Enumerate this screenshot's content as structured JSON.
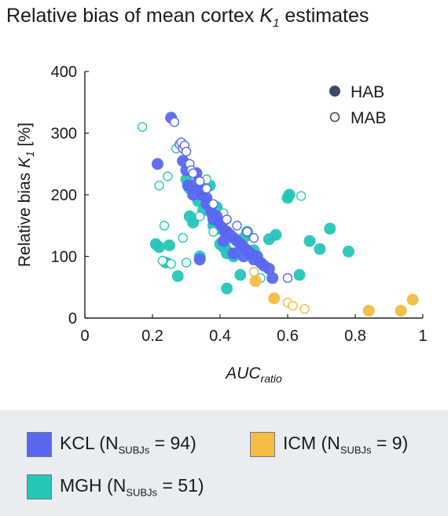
{
  "title": {
    "prefix": "Relative bias of mean cortex ",
    "var": "K",
    "sub": "1",
    "suffix": " estimates"
  },
  "chart_data": {
    "type": "scatter",
    "xlabel": {
      "main": "AUC",
      "sub": "ratio"
    },
    "ylabel": {
      "main": "Relative bias ",
      "var": "K",
      "sub": "1",
      "suffix": " [%]"
    },
    "xlim": [
      0,
      1
    ],
    "ylim": [
      0,
      400
    ],
    "xticks": [
      0,
      0.2,
      0.4,
      0.6,
      0.8,
      1
    ],
    "xtick_labels": [
      "0",
      "0.2",
      "0.4",
      "0.6",
      "0.8",
      "1"
    ],
    "yticks": [
      0,
      100,
      200,
      300,
      400
    ],
    "ytick_labels": [
      "0",
      "100",
      "200",
      "300",
      "400"
    ],
    "grid": false,
    "marker_legend": {
      "placement": "top-right",
      "items": [
        {
          "label": "HAB",
          "style": "filled"
        },
        {
          "label": "MAB",
          "style": "open"
        }
      ]
    },
    "colors": {
      "KCL": "#5a67f0",
      "MGH": "#26c5b8",
      "ICM": "#f4bc44",
      "legend_marker": "#3d4a66"
    },
    "series": [
      {
        "group": "KCL",
        "style": "filled",
        "x": [
          0.255,
          0.215,
          0.29,
          0.3,
          0.305,
          0.33,
          0.33,
          0.34,
          0.35,
          0.345,
          0.36,
          0.37,
          0.375,
          0.39,
          0.4,
          0.405,
          0.415,
          0.42,
          0.43,
          0.44,
          0.45,
          0.46,
          0.47,
          0.48,
          0.49,
          0.51,
          0.52,
          0.53,
          0.545,
          0.555,
          0.34,
          0.44,
          0.41,
          0.38,
          0.36,
          0.32,
          0.47,
          0.5
        ],
        "y": [
          325,
          250,
          255,
          240,
          215,
          235,
          218,
          210,
          205,
          200,
          195,
          180,
          170,
          165,
          155,
          150,
          140,
          140,
          135,
          130,
          125,
          120,
          115,
          110,
          105,
          100,
          90,
          85,
          80,
          65,
          95,
          105,
          125,
          160,
          185,
          200,
          100,
          95
        ]
      },
      {
        "group": "KCL",
        "style": "open",
        "x": [
          0.265,
          0.28,
          0.285,
          0.29,
          0.295,
          0.3,
          0.31,
          0.315,
          0.32,
          0.34,
          0.36,
          0.38,
          0.42,
          0.45,
          0.48,
          0.5,
          0.6
        ],
        "y": [
          318,
          282,
          285,
          275,
          280,
          270,
          250,
          240,
          235,
          222,
          210,
          185,
          160,
          150,
          140,
          130,
          65
        ]
      },
      {
        "group": "MGH",
        "style": "filled",
        "x": [
          0.21,
          0.22,
          0.24,
          0.25,
          0.275,
          0.3,
          0.31,
          0.32,
          0.34,
          0.35,
          0.37,
          0.38,
          0.395,
          0.4,
          0.41,
          0.42,
          0.43,
          0.44,
          0.46,
          0.47,
          0.48,
          0.5,
          0.545,
          0.565,
          0.6,
          0.605,
          0.635,
          0.665,
          0.695,
          0.725,
          0.78,
          0.335,
          0.31,
          0.42,
          0.45,
          0.4,
          0.38,
          0.39
        ],
        "y": [
          120,
          115,
          90,
          118,
          68,
          225,
          165,
          155,
          100,
          175,
          215,
          150,
          145,
          120,
          115,
          105,
          110,
          100,
          70,
          130,
          140,
          110,
          128,
          135,
          195,
          200,
          70,
          125,
          112,
          145,
          108,
          190,
          210,
          48,
          115,
          165,
          168,
          180
        ]
      },
      {
        "group": "MGH",
        "style": "open",
        "x": [
          0.17,
          0.22,
          0.235,
          0.245,
          0.255,
          0.27,
          0.29,
          0.3,
          0.33,
          0.34,
          0.36,
          0.38,
          0.41,
          0.42,
          0.44,
          0.5,
          0.52,
          0.64,
          0.23
        ],
        "y": [
          310,
          215,
          150,
          230,
          88,
          275,
          130,
          90,
          200,
          165,
          225,
          140,
          170,
          160,
          120,
          75,
          65,
          198,
          93
        ]
      },
      {
        "group": "ICM",
        "style": "filled",
        "x": [
          0.505,
          0.56,
          0.84,
          0.935,
          0.97
        ],
        "y": [
          60,
          32,
          12,
          12,
          30
        ]
      },
      {
        "group": "ICM",
        "style": "open",
        "x": [
          0.5,
          0.6,
          0.615,
          0.65
        ],
        "y": [
          75,
          25,
          20,
          15
        ]
      }
    ]
  },
  "group_legend": [
    {
      "key": "KCL",
      "name": "KCL (N",
      "sub": "SUBJs",
      "rest": " = 94)",
      "color": "#5a67f0"
    },
    {
      "key": "ICM",
      "name": "ICM (N",
      "sub": "SUBJs",
      "rest": " = 9)",
      "color": "#f4bc44"
    },
    {
      "key": "MGH",
      "name": "MGH (N",
      "sub": "SUBJs",
      "rest": " = 51)",
      "color": "#26c5b8"
    }
  ]
}
